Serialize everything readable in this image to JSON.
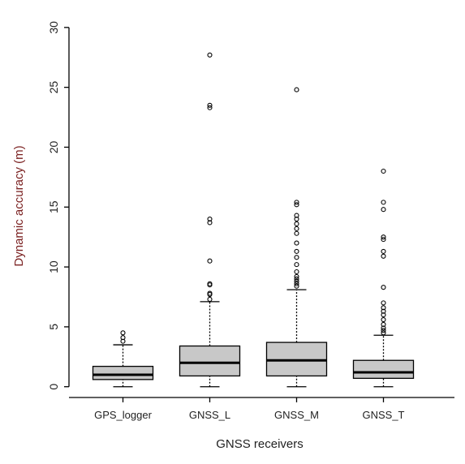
{
  "chart_data": {
    "type": "boxplot",
    "x_label": "GNSS receivers",
    "y_label": "Dynamic accuracy (m)",
    "categories": [
      "GPS_logger",
      "GNSS_L",
      "GNSS_M",
      "GNSS_T"
    ],
    "boxes": [
      {
        "min": 0,
        "q1": 0.6,
        "median": 1.0,
        "q3": 1.7,
        "max": 3.5,
        "outliers": [
          3.8,
          4.1,
          4.5
        ]
      },
      {
        "min": 0,
        "q1": 0.9,
        "median": 2.0,
        "q3": 3.4,
        "max": 7.1,
        "outliers": [
          7.3,
          7.7,
          7.8,
          8.5,
          8.6,
          10.5,
          13.7,
          14.0,
          23.3,
          23.5,
          27.7
        ]
      },
      {
        "min": 0,
        "q1": 0.9,
        "median": 2.2,
        "q3": 3.7,
        "max": 8.1,
        "outliers": [
          8.4,
          8.6,
          8.8,
          9.0,
          9.2,
          9.6,
          10.2,
          10.8,
          11.3,
          12.0,
          12.8,
          13.2,
          13.6,
          14.0,
          14.3,
          15.2,
          15.4,
          24.8
        ]
      },
      {
        "min": 0,
        "q1": 0.7,
        "median": 1.2,
        "q3": 2.2,
        "max": 4.3,
        "outliers": [
          4.5,
          4.7,
          4.9,
          5.2,
          5.6,
          6.0,
          6.3,
          6.6,
          7.0,
          8.3,
          10.9,
          11.3,
          12.3,
          12.5,
          14.8,
          15.4,
          18.0
        ]
      }
    ],
    "box_color": "#c8c8c8",
    "ylim": [
      -0.9,
      31.1
    ],
    "yticks": [
      0,
      5,
      10,
      15,
      20,
      25,
      30
    ]
  }
}
